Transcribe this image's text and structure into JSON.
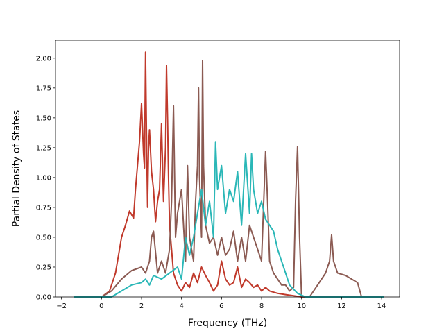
{
  "chart_data": {
    "type": "line",
    "xlabel": "Frequency (THz)",
    "ylabel": "Partial Density of States",
    "xlim": [
      -2.3,
      14.9
    ],
    "ylim": [
      0,
      2.15
    ],
    "xticks": [
      "−2",
      "0",
      "2",
      "4",
      "6",
      "8",
      "10",
      "12",
      "14"
    ],
    "xtick_values": [
      -2,
      0,
      2,
      4,
      6,
      8,
      10,
      12,
      14
    ],
    "yticks": [
      "0.00",
      "0.25",
      "0.50",
      "0.75",
      "1.00",
      "1.25",
      "1.50",
      "1.75",
      "2.00"
    ],
    "ytick_values": [
      0,
      0.25,
      0.5,
      0.75,
      1.0,
      1.25,
      1.5,
      1.75,
      2.0
    ],
    "grid": false,
    "series": [
      {
        "color": "#c0392b",
        "x": [
          -1.4,
          0.0,
          0.4,
          0.7,
          1.0,
          1.2,
          1.4,
          1.6,
          1.7,
          1.8,
          1.9,
          2.0,
          2.1,
          2.15,
          2.2,
          2.25,
          2.3,
          2.35,
          2.4,
          2.5,
          2.6,
          2.7,
          2.8,
          2.9,
          3.0,
          3.1,
          3.2,
          3.25,
          3.3,
          3.35,
          3.4,
          3.5,
          3.6,
          3.8,
          4.0,
          4.2,
          4.4,
          4.6,
          4.8,
          5.0,
          5.2,
          5.4,
          5.6,
          5.8,
          6.0,
          6.2,
          6.4,
          6.6,
          6.8,
          7.0,
          7.2,
          7.4,
          7.6,
          7.8,
          8.0,
          8.2,
          8.4,
          8.8,
          9.2,
          9.6,
          10.0,
          12.0,
          14.1
        ],
        "y": [
          0.0,
          0.0,
          0.05,
          0.2,
          0.5,
          0.6,
          0.72,
          0.66,
          0.9,
          1.1,
          1.3,
          1.62,
          1.2,
          1.08,
          2.05,
          1.35,
          0.75,
          1.25,
          1.4,
          1.05,
          0.9,
          0.63,
          0.8,
          0.9,
          1.45,
          0.8,
          1.25,
          1.94,
          1.5,
          1.0,
          0.6,
          0.4,
          0.2,
          0.1,
          0.05,
          0.12,
          0.08,
          0.2,
          0.12,
          0.25,
          0.18,
          0.12,
          0.05,
          0.1,
          0.3,
          0.15,
          0.1,
          0.12,
          0.25,
          0.08,
          0.15,
          0.12,
          0.08,
          0.1,
          0.05,
          0.08,
          0.05,
          0.03,
          0.02,
          0.01,
          0.0,
          0.0,
          0.0
        ]
      },
      {
        "color": "#8b5a52",
        "x": [
          -1.4,
          0.0,
          0.5,
          1.0,
          1.5,
          2.0,
          2.2,
          2.4,
          2.5,
          2.6,
          2.8,
          3.0,
          3.2,
          3.4,
          3.5,
          3.6,
          3.7,
          3.8,
          4.0,
          4.2,
          4.3,
          4.4,
          4.6,
          4.7,
          4.8,
          4.85,
          4.9,
          5.0,
          5.05,
          5.1,
          5.2,
          5.4,
          5.6,
          5.8,
          6.0,
          6.2,
          6.4,
          6.6,
          6.8,
          7.0,
          7.2,
          7.4,
          7.6,
          7.8,
          8.0,
          8.2,
          8.3,
          8.4,
          8.6,
          8.8,
          9.0,
          9.2,
          9.4,
          9.6,
          9.7,
          9.8,
          9.9,
          10.0,
          10.2,
          10.4,
          10.8,
          11.2,
          11.4,
          11.5,
          11.6,
          11.8,
          12.2,
          12.8,
          13.0,
          14.1
        ],
        "y": [
          0.0,
          0.0,
          0.05,
          0.15,
          0.22,
          0.25,
          0.2,
          0.3,
          0.5,
          0.55,
          0.2,
          0.3,
          0.2,
          0.4,
          0.8,
          1.6,
          0.5,
          0.7,
          0.9,
          0.3,
          1.1,
          0.5,
          0.3,
          0.8,
          1.1,
          1.75,
          1.0,
          0.5,
          1.98,
          1.1,
          0.6,
          0.45,
          0.5,
          0.35,
          0.5,
          0.35,
          0.4,
          0.55,
          0.3,
          0.5,
          0.3,
          0.6,
          0.5,
          0.4,
          0.3,
          1.22,
          0.8,
          0.3,
          0.2,
          0.15,
          0.1,
          0.1,
          0.05,
          0.08,
          0.8,
          1.26,
          0.5,
          0.0,
          0.0,
          0.0,
          0.1,
          0.2,
          0.3,
          0.52,
          0.3,
          0.2,
          0.18,
          0.12,
          0.0,
          0.0
        ]
      },
      {
        "color": "#2ab7b7",
        "x": [
          -1.4,
          0.0,
          0.5,
          1.0,
          1.5,
          2.0,
          2.2,
          2.4,
          2.6,
          3.0,
          3.4,
          3.8,
          4.0,
          4.2,
          4.4,
          4.6,
          4.8,
          5.0,
          5.2,
          5.4,
          5.6,
          5.7,
          5.8,
          6.0,
          6.2,
          6.4,
          6.6,
          6.8,
          7.0,
          7.2,
          7.4,
          7.5,
          7.6,
          7.8,
          8.0,
          8.2,
          8.4,
          8.6,
          8.8,
          9.0,
          9.4,
          9.8,
          10.2,
          12.0,
          14.1
        ],
        "y": [
          0.0,
          0.0,
          0.0,
          0.05,
          0.1,
          0.12,
          0.15,
          0.1,
          0.18,
          0.15,
          0.2,
          0.25,
          0.15,
          0.5,
          0.35,
          0.5,
          0.7,
          0.9,
          0.6,
          0.8,
          0.5,
          1.3,
          0.9,
          1.1,
          0.7,
          0.9,
          0.8,
          1.05,
          0.6,
          1.2,
          0.7,
          1.2,
          0.9,
          0.7,
          0.8,
          0.65,
          0.6,
          0.55,
          0.4,
          0.3,
          0.1,
          0.03,
          0.0,
          0.0,
          0.0
        ]
      }
    ]
  }
}
